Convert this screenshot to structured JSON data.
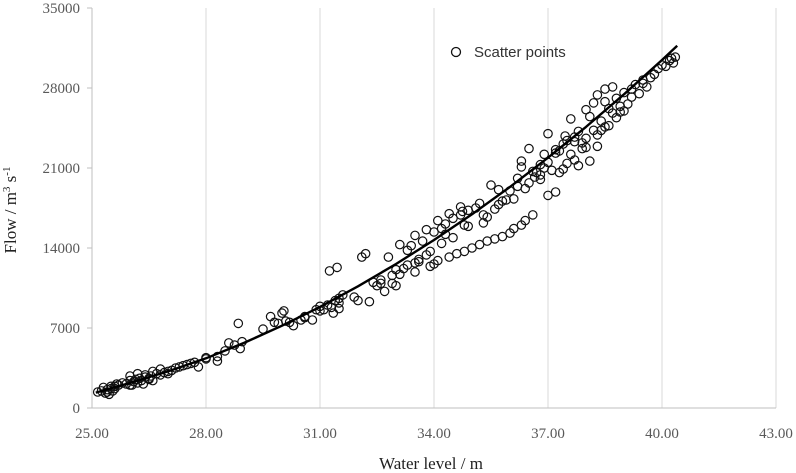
{
  "chart_data": {
    "type": "scatter",
    "title": "",
    "xlabel": "Water level / m",
    "ylabel_main": "Flow / m",
    "ylabel_sup1": "3",
    "ylabel_mid": " s",
    "ylabel_sup2": "-1",
    "xlim": [
      25,
      43
    ],
    "ylim": [
      0,
      35000
    ],
    "x_ticks": [
      25,
      28,
      31,
      34,
      37,
      40,
      43
    ],
    "x_tick_labels": [
      "25.00",
      "28.00",
      "31.00",
      "34.00",
      "37.00",
      "40.00",
      "43.00"
    ],
    "y_ticks": [
      0,
      7000,
      14000,
      21000,
      28000,
      35000
    ],
    "y_tick_labels": [
      "0",
      "7000",
      "14000",
      "21000",
      "28000",
      "35000"
    ],
    "grid": {
      "vertical": true,
      "horizontal": false
    },
    "legend": {
      "position": "top-right",
      "entries": [
        "Scatter points"
      ]
    },
    "series": [
      {
        "name": "Scatter points",
        "kind": "scatter",
        "marker": "open-circle",
        "points": [
          [
            25.15,
            1400
          ],
          [
            25.25,
            1500
          ],
          [
            25.3,
            1800
          ],
          [
            25.35,
            1300
          ],
          [
            25.4,
            1600
          ],
          [
            25.45,
            1200
          ],
          [
            25.5,
            1700
          ],
          [
            25.55,
            1500
          ],
          [
            25.6,
            1900
          ],
          [
            25.65,
            2100
          ],
          [
            25.7,
            2000
          ],
          [
            25.8,
            2200
          ],
          [
            25.9,
            2100
          ],
          [
            26.0,
            2400
          ],
          [
            26.05,
            2000
          ],
          [
            26.1,
            2300
          ],
          [
            26.15,
            2500
          ],
          [
            26.2,
            2200
          ],
          [
            26.25,
            2600
          ],
          [
            26.3,
            2400
          ],
          [
            26.35,
            2100
          ],
          [
            26.4,
            2700
          ],
          [
            26.5,
            2500
          ],
          [
            26.55,
            2800
          ],
          [
            26.6,
            2400
          ],
          [
            26.7,
            3000
          ],
          [
            26.8,
            2900
          ],
          [
            26.9,
            3100
          ],
          [
            27.0,
            3200
          ],
          [
            27.1,
            3300
          ],
          [
            27.2,
            3500
          ],
          [
            27.4,
            3700
          ],
          [
            27.6,
            3900
          ],
          [
            27.8,
            3600
          ],
          [
            28.0,
            4300
          ],
          [
            28.3,
            4100
          ],
          [
            28.6,
            5700
          ],
          [
            28.75,
            5500
          ],
          [
            28.85,
            7400
          ],
          [
            29.7,
            8000
          ],
          [
            29.8,
            7500
          ],
          [
            29.9,
            7400
          ],
          [
            30.0,
            8300
          ],
          [
            30.05,
            8500
          ],
          [
            30.1,
            7600
          ],
          [
            30.3,
            7200
          ],
          [
            30.5,
            7700
          ],
          [
            30.6,
            7900
          ],
          [
            30.8,
            7700
          ],
          [
            30.9,
            8600
          ],
          [
            31.0,
            8900
          ],
          [
            31.1,
            8600
          ],
          [
            31.2,
            9000
          ],
          [
            31.25,
            12000
          ],
          [
            31.3,
            8800
          ],
          [
            31.35,
            8300
          ],
          [
            31.4,
            9400
          ],
          [
            31.45,
            12300
          ],
          [
            31.5,
            9600
          ],
          [
            31.5,
            8700
          ],
          [
            32.0,
            9400
          ],
          [
            32.1,
            13200
          ],
          [
            32.2,
            13500
          ],
          [
            32.3,
            9300
          ],
          [
            32.4,
            11000
          ],
          [
            32.5,
            10700
          ],
          [
            32.7,
            10200
          ],
          [
            32.9,
            10900
          ],
          [
            33.0,
            10700
          ],
          [
            33.1,
            11700
          ],
          [
            33.2,
            12200
          ],
          [
            33.3,
            13800
          ],
          [
            33.4,
            14200
          ],
          [
            33.5,
            11900
          ],
          [
            33.6,
            12800
          ],
          [
            33.7,
            14600
          ],
          [
            33.8,
            13400
          ],
          [
            33.9,
            12400
          ],
          [
            34.0,
            12600
          ],
          [
            34.0,
            15400
          ],
          [
            34.1,
            12900
          ],
          [
            34.2,
            15700
          ],
          [
            34.3,
            16100
          ],
          [
            34.4,
            13200
          ],
          [
            34.5,
            16600
          ],
          [
            34.6,
            13500
          ],
          [
            34.7,
            16900
          ],
          [
            34.75,
            17200
          ],
          [
            34.8,
            13700
          ],
          [
            34.9,
            17300
          ],
          [
            35.0,
            14000
          ],
          [
            35.1,
            17500
          ],
          [
            35.2,
            14300
          ],
          [
            35.3,
            16200
          ],
          [
            35.4,
            14600
          ],
          [
            35.5,
            19500
          ],
          [
            35.6,
            14800
          ],
          [
            35.7,
            17800
          ],
          [
            35.8,
            15000
          ],
          [
            35.9,
            18200
          ],
          [
            36.0,
            15300
          ],
          [
            36.0,
            19000
          ],
          [
            36.1,
            15700
          ],
          [
            36.2,
            19400
          ],
          [
            36.3,
            16000
          ],
          [
            36.3,
            21100
          ],
          [
            36.4,
            16400
          ],
          [
            36.5,
            19700
          ],
          [
            36.6,
            16900
          ],
          [
            36.65,
            20200
          ],
          [
            36.7,
            20600
          ],
          [
            36.8,
            21300
          ],
          [
            36.9,
            22200
          ],
          [
            37.0,
            21500
          ],
          [
            37.0,
            18600
          ],
          [
            37.1,
            20800
          ],
          [
            37.2,
            22600
          ],
          [
            37.2,
            18900
          ],
          [
            37.3,
            20600
          ],
          [
            37.4,
            23100
          ],
          [
            37.45,
            23800
          ],
          [
            37.5,
            21400
          ],
          [
            37.6,
            22200
          ],
          [
            37.7,
            23300
          ],
          [
            37.8,
            21200
          ],
          [
            37.9,
            22700
          ],
          [
            38.0,
            23600
          ],
          [
            38.1,
            21600
          ],
          [
            38.2,
            24300
          ],
          [
            38.3,
            22900
          ],
          [
            38.4,
            25100
          ],
          [
            38.5,
            24600
          ],
          [
            38.6,
            26200
          ],
          [
            38.7,
            25800
          ],
          [
            38.8,
            27100
          ],
          [
            38.9,
            26400
          ],
          [
            39.0,
            27600
          ],
          [
            39.1,
            26600
          ],
          [
            39.2,
            27900
          ],
          [
            39.3,
            28300
          ],
          [
            39.4,
            27500
          ],
          [
            39.5,
            28700
          ],
          [
            39.6,
            28100
          ],
          [
            39.7,
            28900
          ],
          [
            39.8,
            29200
          ],
          [
            39.9,
            29700
          ],
          [
            40.0,
            30000
          ],
          [
            40.1,
            29900
          ],
          [
            40.2,
            30400
          ],
          [
            40.25,
            30600
          ],
          [
            40.3,
            30200
          ],
          [
            40.35,
            30700
          ],
          [
            36.3,
            21600
          ],
          [
            36.5,
            22700
          ],
          [
            37.0,
            24000
          ],
          [
            37.5,
            23400
          ],
          [
            38.0,
            26100
          ],
          [
            38.2,
            26700
          ],
          [
            38.3,
            27400
          ],
          [
            38.5,
            27900
          ],
          [
            38.7,
            28100
          ],
          [
            38.1,
            25500
          ],
          [
            37.8,
            24200
          ],
          [
            37.6,
            25300
          ],
          [
            37.3,
            22500
          ],
          [
            36.8,
            20400
          ],
          [
            36.4,
            19200
          ],
          [
            35.8,
            18100
          ],
          [
            35.4,
            16700
          ],
          [
            34.9,
            15900
          ],
          [
            34.5,
            14900
          ],
          [
            34.2,
            14400
          ],
          [
            33.9,
            13700
          ],
          [
            33.6,
            13000
          ],
          [
            33.3,
            12500
          ],
          [
            32.9,
            11600
          ],
          [
            32.6,
            10900
          ],
          [
            31.9,
            9700
          ],
          [
            31.5,
            9200
          ],
          [
            31.0,
            8500
          ],
          [
            30.6,
            8000
          ],
          [
            30.2,
            7500
          ],
          [
            28.95,
            5800
          ],
          [
            28.5,
            5000
          ],
          [
            28.0,
            4400
          ],
          [
            27.5,
            3800
          ],
          [
            27.0,
            3000
          ],
          [
            26.5,
            2600
          ],
          [
            26.0,
            2000
          ],
          [
            25.6,
            1700
          ],
          [
            25.4,
            1400
          ],
          [
            25.5,
            1900
          ],
          [
            26.0,
            2800
          ],
          [
            26.2,
            3000
          ],
          [
            26.4,
            2900
          ],
          [
            26.6,
            3200
          ],
          [
            26.8,
            3400
          ],
          [
            27.3,
            3600
          ],
          [
            27.7,
            4000
          ],
          [
            28.3,
            4500
          ],
          [
            28.9,
            5200
          ],
          [
            29.5,
            6900
          ],
          [
            31.6,
            9900
          ],
          [
            32.6,
            11200
          ],
          [
            33.0,
            12100
          ],
          [
            33.5,
            12700
          ],
          [
            34.3,
            15200
          ],
          [
            34.8,
            16000
          ],
          [
            35.3,
            16900
          ],
          [
            35.6,
            17400
          ],
          [
            36.1,
            18300
          ],
          [
            36.8,
            20000
          ],
          [
            37.4,
            20900
          ],
          [
            37.7,
            21700
          ],
          [
            38.0,
            22800
          ],
          [
            38.4,
            24300
          ],
          [
            38.9,
            25900
          ],
          [
            39.2,
            27200
          ],
          [
            39.5,
            28400
          ],
          [
            37.9,
            23200
          ],
          [
            38.3,
            23900
          ],
          [
            38.6,
            24700
          ],
          [
            38.8,
            25400
          ],
          [
            39.0,
            26000
          ],
          [
            38.5,
            26800
          ],
          [
            37.7,
            23700
          ],
          [
            37.2,
            22300
          ],
          [
            36.9,
            21000
          ],
          [
            36.6,
            20700
          ],
          [
            36.2,
            20100
          ],
          [
            35.7,
            19100
          ],
          [
            35.2,
            17900
          ],
          [
            34.7,
            17600
          ],
          [
            34.4,
            17000
          ],
          [
            34.1,
            16400
          ],
          [
            33.8,
            15600
          ],
          [
            33.5,
            15100
          ],
          [
            33.1,
            14300
          ],
          [
            32.8,
            13200
          ]
        ]
      },
      {
        "name": "",
        "kind": "fit-line",
        "x": [
          25.1,
          26.0,
          27.0,
          28.0,
          29.0,
          30.0,
          31.0,
          32.0,
          33.0,
          34.0,
          35.0,
          36.0,
          37.0,
          38.0,
          39.0,
          40.0,
          40.4
        ],
        "y": [
          1350,
          2200,
          3200,
          4350,
          5700,
          7200,
          8850,
          10650,
          12600,
          14700,
          16950,
          19350,
          21900,
          24600,
          27450,
          30450,
          31700
        ]
      }
    ]
  }
}
